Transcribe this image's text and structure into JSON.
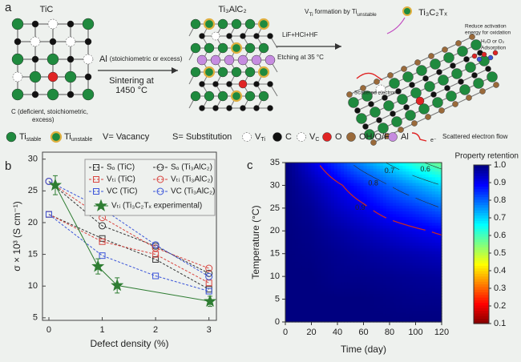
{
  "panel_a": {
    "label": "a",
    "tic": "TiC",
    "ti3alc2": "Ti₃AlC₂",
    "ti3c2tx": "Ti₃C₂Tₓ",
    "al": "Al",
    "al_note": "(stoichiometric or excess)",
    "sintering": "Sintering at",
    "sintering_temp": "1450 °C",
    "c_note_1": "C (deficient, stoichiometric,",
    "c_note_2": "excess)",
    "etchants": "LiF+HCl+HF",
    "etching": "Etching at 35 °C",
    "vti_formation": [
      "V",
      "Ti",
      " formation by Ti",
      "unstable"
    ],
    "scattered_electron": "Scattered electron",
    "reduce_note_1": "Reduce activation",
    "reduce_note_2": "energy for oxidation",
    "h2o_o2": "H₂O or O₂",
    "adsorption": "Adsorption",
    "legend": {
      "ti_stable": [
        "Ti",
        "stable"
      ],
      "ti_unstable": [
        "Ti",
        "unstable"
      ],
      "vacancy": "V= Vacancy",
      "substitution": "S= Substitution",
      "v_ti": [
        "V",
        "Ti"
      ],
      "c": "C",
      "v_c": [
        "V",
        "C"
      ],
      "o": "O",
      "ohof": "OH/O/F",
      "al": "Al",
      "e": "e⁻",
      "scattered_flow": "Scattered electron flow"
    }
  },
  "chart_data": [
    {
      "type": "line",
      "label": "b",
      "xlabel": "Defect density (%)",
      "ylabel": "σ × 10³ (S cm⁻¹)",
      "xlim": [
        -0.12,
        3.14
      ],
      "ylim": [
        4.6,
        31.1
      ],
      "xticks": [
        0,
        1,
        2,
        3
      ],
      "yticks": [
        5,
        10,
        15,
        20,
        25,
        30
      ],
      "legend": "upper right",
      "series": [
        {
          "name": "Sₒ (TiC)",
          "color": "#333333",
          "marker": "square",
          "dashed": true,
          "x": [
            0,
            1,
            2,
            3
          ],
          "values": [
            21.3,
            17.5,
            14.2,
            9.5
          ]
        },
        {
          "name": "Vₜᵢ (TiC)",
          "color": "#d9443f",
          "marker": "square",
          "dashed": true,
          "x": [
            0,
            1,
            2,
            3
          ],
          "values": [
            21.3,
            17.0,
            15.0,
            10.5
          ]
        },
        {
          "name": "VC (TiC)",
          "color": "#3b55d9",
          "marker": "square",
          "dashed": true,
          "x": [
            0,
            1,
            2,
            3
          ],
          "values": [
            21.3,
            14.8,
            11.6,
            9.2
          ]
        },
        {
          "name": "Sₒ (Ti₃AlC₂)",
          "color": "#333333",
          "marker": "circle",
          "dashed": true,
          "x": [
            0,
            1,
            2,
            3
          ],
          "values": [
            26.5,
            19.5,
            16.3,
            12.0
          ]
        },
        {
          "name": "Vₜᵢ (Ti₃AlC₂)",
          "color": "#d9443f",
          "marker": "circle",
          "dashed": true,
          "x": [
            0,
            1,
            2,
            3
          ],
          "values": [
            26.5,
            20.8,
            16.0,
            12.8
          ]
        },
        {
          "name": "VC (Ti₃AlC₂)",
          "color": "#3b55d9",
          "marker": "circle",
          "dashed": true,
          "x": [
            0,
            1,
            2,
            3
          ],
          "values": [
            26.5,
            22.2,
            16.5,
            11.5
          ]
        },
        {
          "name": "Vₜᵢ (Ti₃C₂Tₓ experimental)",
          "color": "#2e7d32",
          "marker": "star",
          "dashed": false,
          "x": [
            0.12,
            0.92,
            1.28,
            3.02
          ],
          "values": [
            25.9,
            13.1,
            10.1,
            7.6
          ],
          "errors": [
            1.5,
            1.2,
            1.2,
            0.8
          ]
        }
      ]
    },
    {
      "type": "contour",
      "label": "c",
      "xlabel": "Time (day)",
      "ylabel": "Temperature (°C)",
      "xlim": [
        0,
        120
      ],
      "ylim": [
        0,
        35
      ],
      "xticks": [
        0,
        20,
        40,
        60,
        80,
        100,
        120
      ],
      "yticks": [
        0,
        5,
        10,
        15,
        20,
        25,
        30,
        35
      ],
      "x": [
        0,
        20,
        40,
        60,
        80,
        100,
        120
      ],
      "y": [
        0,
        5,
        10,
        15,
        20,
        25,
        30,
        35
      ],
      "z": [
        [
          1,
          1,
          1,
          1,
          1,
          1,
          1
        ],
        [
          1,
          1,
          1,
          1,
          0.995,
          0.99,
          0.99
        ],
        [
          1,
          1,
          0.99,
          0.99,
          0.985,
          0.98,
          0.975
        ],
        [
          1,
          0.995,
          0.985,
          0.975,
          0.965,
          0.955,
          0.945
        ],
        [
          1,
          0.99,
          0.97,
          0.95,
          0.93,
          0.91,
          0.89
        ],
        [
          1,
          0.98,
          0.94,
          0.91,
          0.87,
          0.84,
          0.8
        ],
        [
          1,
          0.96,
          0.91,
          0.86,
          0.8,
          0.75,
          0.7
        ],
        [
          1,
          0.92,
          0.84,
          0.76,
          0.69,
          0.62,
          0.56
        ]
      ],
      "levels": [
        0.6,
        0.7,
        0.8,
        0.9
      ],
      "contour_colors": [
        "#2a2a2a",
        "#2a2a2a",
        "#2a2a2a",
        "#c62828"
      ],
      "colormap": "jet_r",
      "colorbar": {
        "label": "Property retention",
        "lim": [
          0.1,
          1.0
        ],
        "ticks": [
          0.1,
          0.2,
          0.3,
          0.4,
          0.5,
          0.6,
          0.7,
          0.8,
          0.9,
          {
            "value": 1,
            "label": "1.0"
          }
        ]
      }
    }
  ]
}
